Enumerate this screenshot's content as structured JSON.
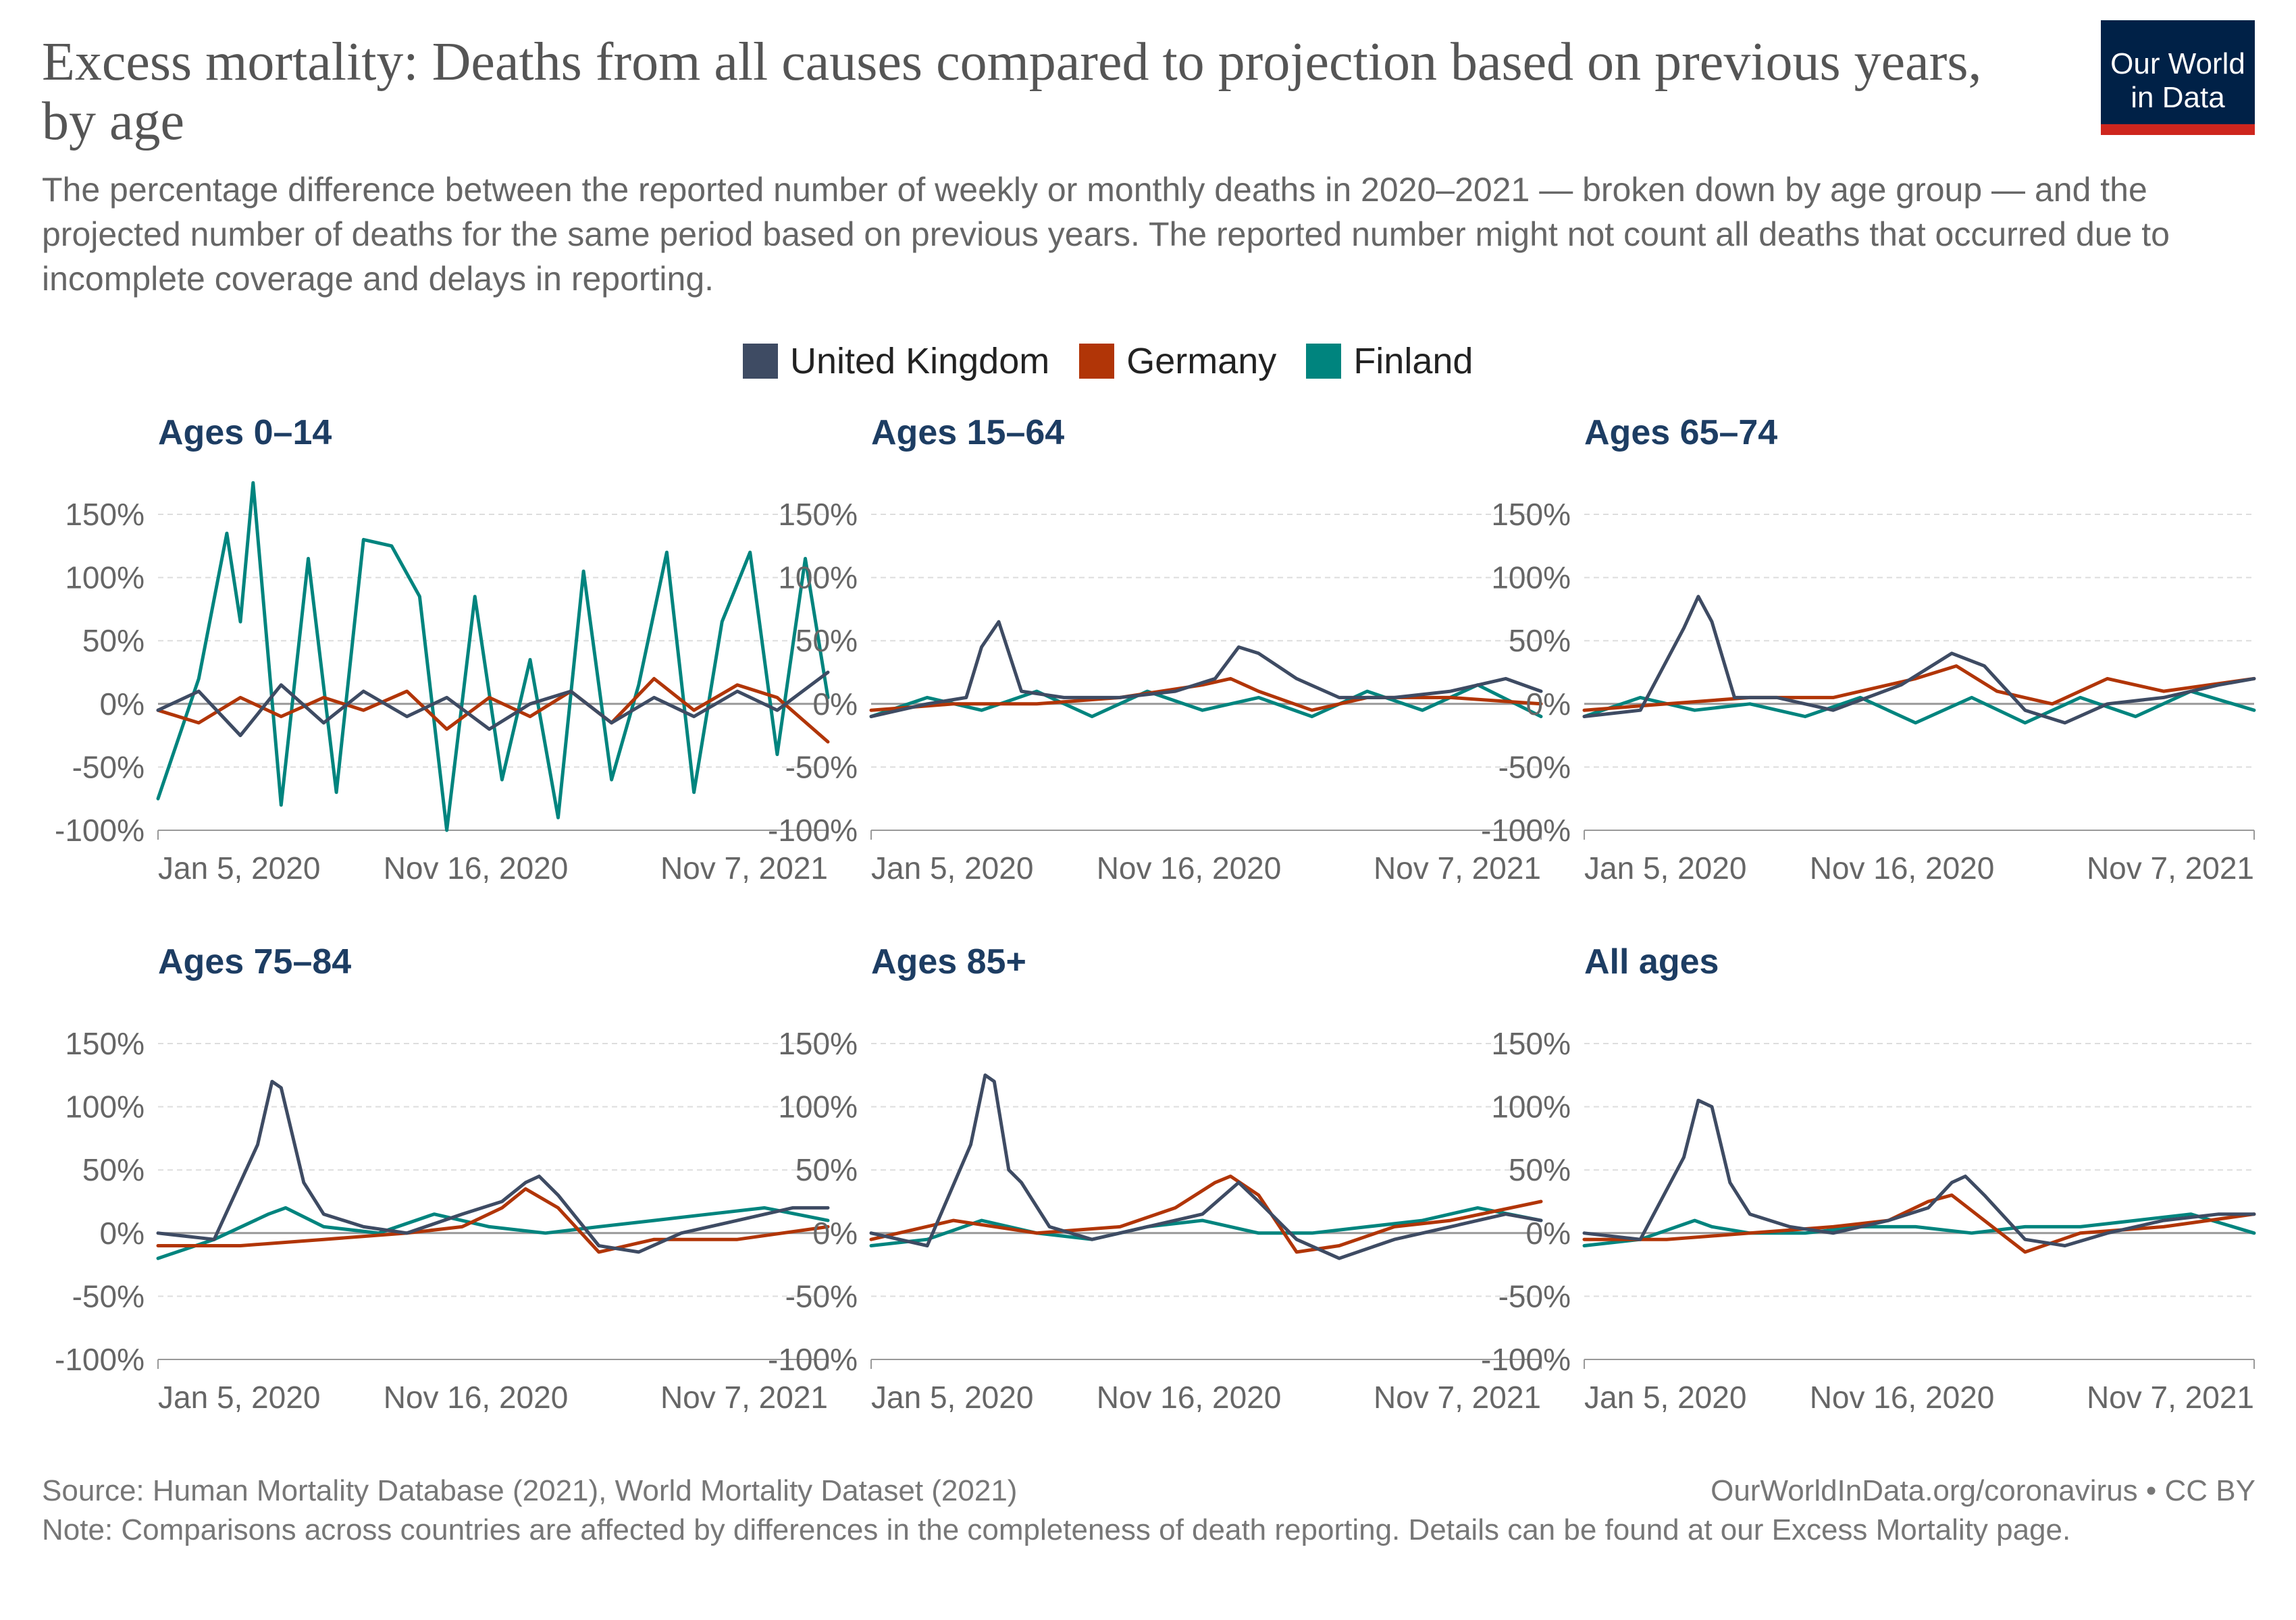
{
  "header": {
    "title": "Excess mortality: Deaths from all causes compared to projection based on previous years, by age",
    "subtitle": "The percentage difference between the reported number of weekly or monthly deaths in 2020–2021 — broken down by age group — and the projected number of deaths for the same period based on previous years. The reported number might not count all deaths that occurred due to incomplete coverage and delays in reporting.",
    "logo_line1": "Our World",
    "logo_line2": "in Data"
  },
  "legend": [
    {
      "name": "United Kingdom",
      "color": "#3e4b63"
    },
    {
      "name": "Germany",
      "color": "#b13507"
    },
    {
      "name": "Finland",
      "color": "#00847e"
    }
  ],
  "footer": {
    "source": "Source: Human Mortality Database (2021), World Mortality Dataset (2021)",
    "credit": "OurWorldInData.org/coronavirus • CC BY",
    "note": "Note: Comparisons across countries are affected by differences in the completeness of death reporting. Details can be found at our Excess Mortality page."
  },
  "chart_data": [
    {
      "type": "line",
      "title": "Ages 0–14",
      "ylim": [
        -100,
        150
      ],
      "yticks": [
        "-100%",
        "-50%",
        "0%",
        "50%",
        "100%",
        "150%"
      ],
      "xlim": [
        "2019-12-01",
        "2021-12-10"
      ],
      "xticks": [
        "Jan 5, 2020",
        "Nov 16, 2020",
        "Nov 7, 2021"
      ],
      "grid": true,
      "series": [
        {
          "name": "United Kingdom",
          "color": "#3e4b63",
          "x": [
            "2019-12-01",
            "2020-01-15",
            "2020-03-01",
            "2020-04-15",
            "2020-06-01",
            "2020-07-15",
            "2020-09-01",
            "2020-10-15",
            "2020-12-01",
            "2021-01-15",
            "2021-03-01",
            "2021-04-15",
            "2021-06-01",
            "2021-07-15",
            "2021-09-01",
            "2021-10-15",
            "2021-12-10"
          ],
          "values": [
            -5,
            10,
            -25,
            15,
            -15,
            10,
            -10,
            5,
            -20,
            0,
            10,
            -15,
            5,
            -10,
            10,
            -5,
            25
          ]
        },
        {
          "name": "Germany",
          "color": "#b13507",
          "x": [
            "2019-12-01",
            "2020-01-15",
            "2020-03-01",
            "2020-04-15",
            "2020-06-01",
            "2020-07-15",
            "2020-09-01",
            "2020-10-15",
            "2020-12-01",
            "2021-01-15",
            "2021-03-01",
            "2021-04-15",
            "2021-06-01",
            "2021-07-15",
            "2021-09-01",
            "2021-10-15",
            "2021-12-10"
          ],
          "values": [
            -5,
            -15,
            5,
            -10,
            5,
            -5,
            10,
            -20,
            5,
            -10,
            10,
            -15,
            20,
            -5,
            15,
            5,
            -30
          ]
        },
        {
          "name": "Finland",
          "color": "#00847e",
          "x": [
            "2019-12-01",
            "2020-01-15",
            "2020-02-15",
            "2020-03-01",
            "2020-03-15",
            "2020-04-15",
            "2020-05-15",
            "2020-06-15",
            "2020-07-15",
            "2020-08-15",
            "2020-09-15",
            "2020-10-15",
            "2020-11-15",
            "2020-12-15",
            "2021-01-15",
            "2021-02-15",
            "2021-03-15",
            "2021-04-15",
            "2021-05-15",
            "2021-06-15",
            "2021-07-15",
            "2021-08-15",
            "2021-09-15",
            "2021-10-15",
            "2021-11-15",
            "2021-12-10"
          ],
          "values": [
            -75,
            20,
            135,
            65,
            175,
            -80,
            115,
            -70,
            130,
            125,
            85,
            -100,
            85,
            -60,
            35,
            -90,
            105,
            -60,
            15,
            120,
            -70,
            65,
            120,
            -40,
            115,
            5
          ]
        }
      ]
    },
    {
      "type": "line",
      "title": "Ages 15–64",
      "ylim": [
        -100,
        150
      ],
      "yticks": [
        "-100%",
        "-50%",
        "0%",
        "50%",
        "100%",
        "150%"
      ],
      "xlim": [
        "2019-12-01",
        "2021-12-10"
      ],
      "xticks": [
        "Jan 5, 2020",
        "Nov 16, 2020",
        "Nov 7, 2021"
      ],
      "grid": true,
      "series": [
        {
          "name": "United Kingdom",
          "color": "#3e4b63",
          "x": [
            "2019-12-01",
            "2020-02-01",
            "2020-03-15",
            "2020-04-01",
            "2020-04-20",
            "2020-05-15",
            "2020-07-01",
            "2020-09-01",
            "2020-11-01",
            "2020-12-15",
            "2021-01-10",
            "2021-02-01",
            "2021-03-15",
            "2021-05-01",
            "2021-07-01",
            "2021-09-01",
            "2021-11-01",
            "2021-12-10"
          ],
          "values": [
            -10,
            0,
            5,
            45,
            65,
            10,
            5,
            5,
            10,
            20,
            45,
            40,
            20,
            5,
            5,
            10,
            20,
            10
          ]
        },
        {
          "name": "Germany",
          "color": "#b13507",
          "x": [
            "2019-12-01",
            "2020-03-01",
            "2020-06-01",
            "2020-09-01",
            "2020-12-01",
            "2021-01-01",
            "2021-02-01",
            "2021-04-01",
            "2021-06-01",
            "2021-09-01",
            "2021-12-10"
          ],
          "values": [
            -5,
            0,
            0,
            5,
            15,
            20,
            10,
            -5,
            5,
            5,
            0
          ]
        },
        {
          "name": "Finland",
          "color": "#00847e",
          "x": [
            "2019-12-01",
            "2020-02-01",
            "2020-04-01",
            "2020-06-01",
            "2020-08-01",
            "2020-10-01",
            "2020-12-01",
            "2021-02-01",
            "2021-04-01",
            "2021-06-01",
            "2021-08-01",
            "2021-10-01",
            "2021-12-10"
          ],
          "values": [
            -10,
            5,
            -5,
            10,
            -10,
            10,
            -5,
            5,
            -10,
            10,
            -5,
            15,
            -10
          ]
        }
      ]
    },
    {
      "type": "line",
      "title": "Ages 65–74",
      "ylim": [
        -100,
        150
      ],
      "yticks": [
        "-100%",
        "-50%",
        "0%",
        "50%",
        "100%",
        "150%"
      ],
      "xlim": [
        "2019-12-01",
        "2021-12-10"
      ],
      "xticks": [
        "Jan 5, 2020",
        "Nov 16, 2020",
        "Nov 7, 2021"
      ],
      "grid": true,
      "series": [
        {
          "name": "United Kingdom",
          "color": "#3e4b63",
          "x": [
            "2019-12-01",
            "2020-02-01",
            "2020-03-20",
            "2020-04-05",
            "2020-04-20",
            "2020-05-15",
            "2020-07-01",
            "2020-09-01",
            "2020-11-15",
            "2021-01-10",
            "2021-02-15",
            "2021-04-01",
            "2021-05-15",
            "2021-07-01",
            "2021-09-01",
            "2021-11-01",
            "2021-12-10"
          ],
          "values": [
            -10,
            -5,
            60,
            85,
            65,
            5,
            5,
            -5,
            15,
            40,
            30,
            -5,
            -15,
            0,
            5,
            15,
            20
          ]
        },
        {
          "name": "Germany",
          "color": "#b13507",
          "x": [
            "2019-12-01",
            "2020-03-01",
            "2020-06-01",
            "2020-09-01",
            "2020-12-01",
            "2021-01-15",
            "2021-03-01",
            "2021-05-01",
            "2021-07-01",
            "2021-09-01",
            "2021-12-10"
          ],
          "values": [
            -5,
            0,
            5,
            5,
            20,
            30,
            10,
            0,
            20,
            10,
            20
          ]
        },
        {
          "name": "Finland",
          "color": "#00847e",
          "x": [
            "2019-12-01",
            "2020-02-01",
            "2020-04-01",
            "2020-06-01",
            "2020-08-01",
            "2020-10-01",
            "2020-12-01",
            "2021-02-01",
            "2021-04-01",
            "2021-06-01",
            "2021-08-01",
            "2021-10-01",
            "2021-12-10"
          ],
          "values": [
            -10,
            5,
            -5,
            0,
            -10,
            5,
            -15,
            5,
            -15,
            5,
            -10,
            10,
            -5
          ]
        }
      ]
    },
    {
      "type": "line",
      "title": "Ages 75–84",
      "ylim": [
        -100,
        150
      ],
      "yticks": [
        "-100%",
        "-50%",
        "0%",
        "50%",
        "100%",
        "150%"
      ],
      "xlim": [
        "2019-12-01",
        "2021-12-10"
      ],
      "xticks": [
        "Jan 5, 2020",
        "Nov 16, 2020",
        "Nov 7, 2021"
      ],
      "grid": true,
      "series": [
        {
          "name": "United Kingdom",
          "color": "#3e4b63",
          "x": [
            "2019-12-01",
            "2020-02-01",
            "2020-03-20",
            "2020-04-05",
            "2020-04-15",
            "2020-05-10",
            "2020-06-01",
            "2020-07-15",
            "2020-09-01",
            "2020-11-01",
            "2020-12-15",
            "2021-01-10",
            "2021-01-25",
            "2021-02-15",
            "2021-04-01",
            "2021-05-15",
            "2021-07-01",
            "2021-09-01",
            "2021-11-01",
            "2021-12-10"
          ],
          "values": [
            0,
            -5,
            70,
            120,
            115,
            40,
            15,
            5,
            0,
            15,
            25,
            40,
            45,
            30,
            -10,
            -15,
            0,
            10,
            20,
            20
          ]
        },
        {
          "name": "Germany",
          "color": "#b13507",
          "x": [
            "2019-12-01",
            "2020-03-01",
            "2020-06-01",
            "2020-09-01",
            "2020-11-01",
            "2020-12-15",
            "2021-01-10",
            "2021-02-15",
            "2021-04-01",
            "2021-06-01",
            "2021-09-01",
            "2021-12-10"
          ],
          "values": [
            -10,
            -10,
            -5,
            0,
            5,
            20,
            35,
            20,
            -15,
            -5,
            -5,
            5
          ]
        },
        {
          "name": "Finland",
          "color": "#00847e",
          "x": [
            "2019-12-01",
            "2020-02-01",
            "2020-04-01",
            "2020-04-20",
            "2020-06-01",
            "2020-08-01",
            "2020-10-01",
            "2020-12-01",
            "2021-02-01",
            "2021-04-01",
            "2021-06-01",
            "2021-08-01",
            "2021-10-01",
            "2021-12-10"
          ],
          "values": [
            -20,
            -5,
            15,
            20,
            5,
            0,
            15,
            5,
            0,
            5,
            10,
            15,
            20,
            10
          ]
        }
      ]
    },
    {
      "type": "line",
      "title": "Ages 85+",
      "ylim": [
        -100,
        150
      ],
      "yticks": [
        "-100%",
        "-50%",
        "0%",
        "50%",
        "100%",
        "150%"
      ],
      "xlim": [
        "2019-12-01",
        "2021-12-10"
      ],
      "xticks": [
        "Jan 5, 2020",
        "Nov 16, 2020",
        "Nov 7, 2021"
      ],
      "grid": true,
      "series": [
        {
          "name": "United Kingdom",
          "color": "#3e4b63",
          "x": [
            "2019-12-01",
            "2020-02-01",
            "2020-03-20",
            "2020-04-05",
            "2020-04-15",
            "2020-05-01",
            "2020-05-15",
            "2020-06-15",
            "2020-08-01",
            "2020-10-01",
            "2020-12-01",
            "2021-01-10",
            "2021-02-01",
            "2021-03-15",
            "2021-05-01",
            "2021-07-01",
            "2021-09-01",
            "2021-11-01",
            "2021-12-10"
          ],
          "values": [
            0,
            -10,
            70,
            125,
            120,
            50,
            40,
            5,
            -5,
            5,
            15,
            40,
            25,
            -5,
            -20,
            -5,
            5,
            15,
            10
          ]
        },
        {
          "name": "Germany",
          "color": "#b13507",
          "x": [
            "2019-12-01",
            "2020-03-01",
            "2020-06-01",
            "2020-09-01",
            "2020-11-01",
            "2020-12-15",
            "2021-01-01",
            "2021-02-01",
            "2021-03-15",
            "2021-05-01",
            "2021-07-01",
            "2021-09-01",
            "2021-12-10"
          ],
          "values": [
            -5,
            10,
            0,
            5,
            20,
            40,
            45,
            30,
            -15,
            -10,
            5,
            10,
            25
          ]
        },
        {
          "name": "Finland",
          "color": "#00847e",
          "x": [
            "2019-12-01",
            "2020-02-01",
            "2020-04-01",
            "2020-06-01",
            "2020-08-01",
            "2020-10-01",
            "2020-12-01",
            "2021-02-01",
            "2021-04-01",
            "2021-06-01",
            "2021-08-01",
            "2021-10-01",
            "2021-12-10"
          ],
          "values": [
            -10,
            -5,
            10,
            0,
            -5,
            5,
            10,
            0,
            0,
            5,
            10,
            20,
            10
          ]
        }
      ]
    },
    {
      "type": "line",
      "title": "All ages",
      "ylim": [
        -100,
        150
      ],
      "yticks": [
        "-100%",
        "-50%",
        "0%",
        "50%",
        "100%",
        "150%"
      ],
      "xlim": [
        "2019-12-01",
        "2021-12-10"
      ],
      "xticks": [
        "Jan 5, 2020",
        "Nov 16, 2020",
        "Nov 7, 2021"
      ],
      "grid": true,
      "series": [
        {
          "name": "United Kingdom",
          "color": "#3e4b63",
          "x": [
            "2019-12-01",
            "2020-02-01",
            "2020-03-20",
            "2020-04-05",
            "2020-04-20",
            "2020-05-10",
            "2020-06-01",
            "2020-07-15",
            "2020-09-01",
            "2020-11-01",
            "2020-12-15",
            "2021-01-10",
            "2021-01-25",
            "2021-02-15",
            "2021-04-01",
            "2021-05-15",
            "2021-07-01",
            "2021-09-01",
            "2021-11-01",
            "2021-12-10"
          ],
          "values": [
            0,
            -5,
            60,
            105,
            100,
            40,
            15,
            5,
            0,
            10,
            20,
            40,
            45,
            30,
            -5,
            -10,
            0,
            10,
            15,
            15
          ]
        },
        {
          "name": "Germany",
          "color": "#b13507",
          "x": [
            "2019-12-01",
            "2020-03-01",
            "2020-06-01",
            "2020-09-01",
            "2020-11-01",
            "2020-12-15",
            "2021-01-10",
            "2021-02-15",
            "2021-04-01",
            "2021-06-01",
            "2021-09-01",
            "2021-12-10"
          ],
          "values": [
            -5,
            -5,
            0,
            5,
            10,
            25,
            30,
            10,
            -15,
            0,
            5,
            15
          ]
        },
        {
          "name": "Finland",
          "color": "#00847e",
          "x": [
            "2019-12-01",
            "2020-02-01",
            "2020-04-01",
            "2020-04-20",
            "2020-06-01",
            "2020-08-01",
            "2020-10-01",
            "2020-12-01",
            "2021-02-01",
            "2021-04-01",
            "2021-06-01",
            "2021-08-01",
            "2021-10-01",
            "2021-12-10"
          ],
          "values": [
            -10,
            -5,
            10,
            5,
            0,
            0,
            5,
            5,
            0,
            5,
            5,
            10,
            15,
            0
          ]
        }
      ]
    }
  ]
}
